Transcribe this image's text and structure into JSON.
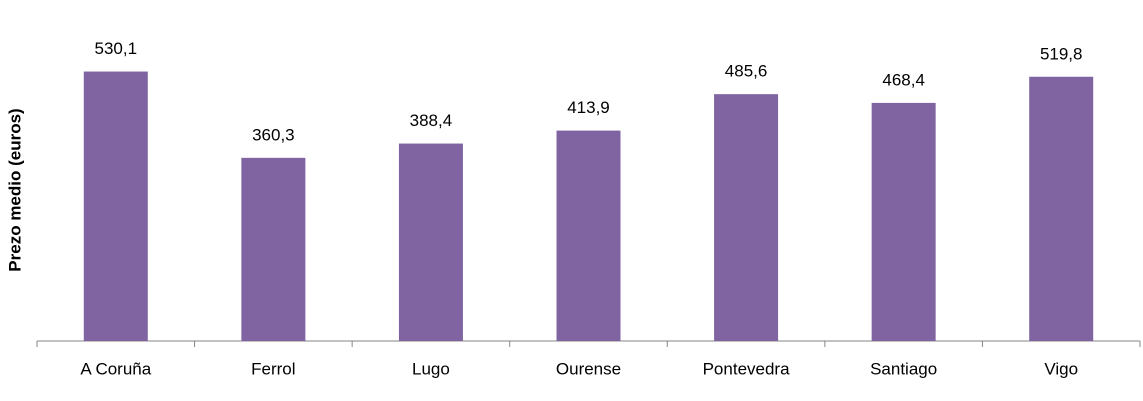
{
  "chart_data": {
    "type": "bar",
    "y_label": "Prezo medio (euros)",
    "categories": [
      "A Coruña",
      "Ferrol",
      "Lugo",
      "Ourense",
      "Pontevedra",
      "Santiago",
      "Vigo"
    ],
    "values": [
      530.1,
      360.3,
      388.4,
      413.9,
      485.6,
      468.4,
      519.8
    ],
    "value_labels": [
      "530,1",
      "360,3",
      "388,4",
      "413,9",
      "485,6",
      "468,4",
      "519,8"
    ],
    "color": "#8064a2",
    "ylim": [
      0,
      600
    ]
  }
}
